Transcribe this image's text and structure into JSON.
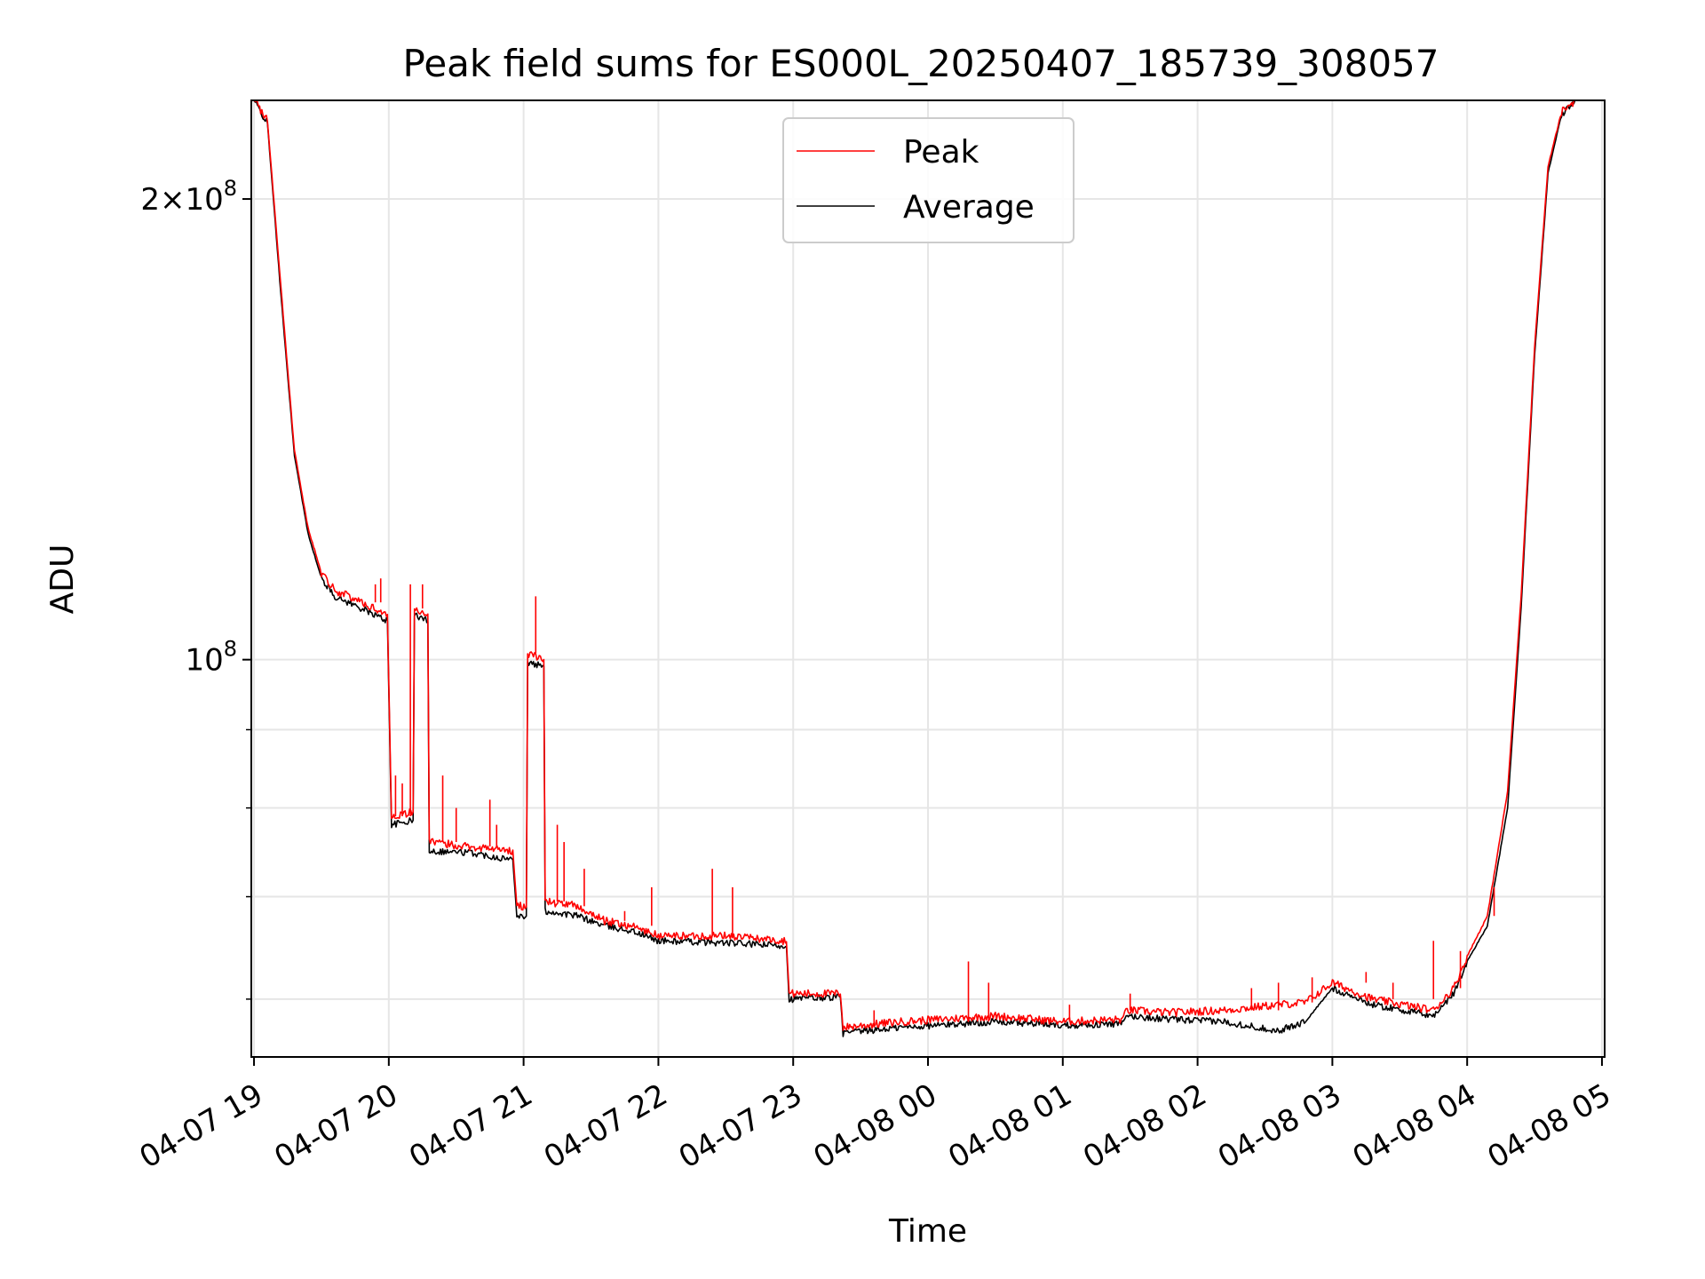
{
  "chart_data": {
    "type": "line",
    "title": "Peak field sums for ES000L_20250407_185739_308057",
    "xlabel": "Time",
    "ylabel": "ADU",
    "x_ticks": [
      "04-07 19",
      "04-07 20",
      "04-07 21",
      "04-07 22",
      "04-07 23",
      "04-08 00",
      "04-08 01",
      "04-08 02",
      "04-08 03",
      "04-08 04",
      "04-08 05"
    ],
    "y_ticks_major": [
      {
        "value": 100000000,
        "base": "10",
        "exp": "8",
        "coef": ""
      },
      {
        "value": 200000000,
        "base": "10",
        "exp": "8",
        "coef": "2×"
      }
    ],
    "y_ticks_minor": [
      60000000,
      70000000,
      80000000,
      90000000
    ],
    "ylim": [
      55000000,
      232000000
    ],
    "y_scale": "log",
    "xlim_hours": [
      18.98,
      29.02
    ],
    "grid": true,
    "legend_position": "top-center",
    "colors": {
      "peak": "#ff0000",
      "average": "#000000"
    },
    "series": [
      {
        "name": "Peak",
        "color": "#ff0000",
        "points": [
          [
            19.0,
            232000000
          ],
          [
            19.1,
            225000000
          ],
          [
            19.2,
            175000000
          ],
          [
            19.3,
            137000000
          ],
          [
            19.4,
            122000000
          ],
          [
            19.5,
            114000000
          ],
          [
            19.6,
            111000000
          ],
          [
            19.8,
            109000000
          ],
          [
            19.99,
            107000000
          ],
          [
            20.02,
            79000000
          ],
          [
            20.18,
            79500000
          ],
          [
            20.19,
            108000000
          ],
          [
            20.29,
            107000000
          ],
          [
            20.3,
            76000000
          ],
          [
            20.6,
            75500000
          ],
          [
            20.92,
            75000000
          ],
          [
            20.95,
            69000000
          ],
          [
            21.02,
            69000000
          ],
          [
            21.03,
            101000000
          ],
          [
            21.15,
            100000000
          ],
          [
            21.16,
            69500000
          ],
          [
            21.4,
            69000000
          ],
          [
            21.6,
            67500000
          ],
          [
            21.8,
            67000000
          ],
          [
            22.0,
            66000000
          ],
          [
            22.5,
            66000000
          ],
          [
            22.95,
            65500000
          ],
          [
            22.97,
            60500000
          ],
          [
            23.35,
            60500000
          ],
          [
            23.37,
            57500000
          ],
          [
            23.8,
            58000000
          ],
          [
            24.5,
            58500000
          ],
          [
            25.0,
            58000000
          ],
          [
            25.45,
            58200000
          ],
          [
            25.47,
            59000000
          ],
          [
            25.8,
            58800000
          ],
          [
            26.2,
            59000000
          ],
          [
            26.6,
            59500000
          ],
          [
            26.8,
            59700000
          ],
          [
            27.0,
            61500000
          ],
          [
            27.3,
            60000000
          ],
          [
            27.75,
            59000000
          ],
          [
            27.9,
            61000000
          ],
          [
            28.0,
            64000000
          ],
          [
            28.15,
            68000000
          ],
          [
            28.3,
            82000000
          ],
          [
            28.4,
            110000000
          ],
          [
            28.5,
            160000000
          ],
          [
            28.6,
            210000000
          ],
          [
            28.7,
            228000000
          ],
          [
            28.8,
            232000000
          ]
        ],
        "spikes": [
          [
            19.9,
            112000000
          ],
          [
            19.94,
            113000000
          ],
          [
            20.05,
            84000000
          ],
          [
            20.1,
            83000000
          ],
          [
            20.16,
            112000000
          ],
          [
            20.25,
            112000000
          ],
          [
            20.4,
            84000000
          ],
          [
            20.5,
            80000000
          ],
          [
            20.75,
            81000000
          ],
          [
            20.8,
            78000000
          ],
          [
            21.09,
            110000000
          ],
          [
            21.25,
            78000000
          ],
          [
            21.3,
            76000000
          ],
          [
            21.45,
            73000000
          ],
          [
            21.75,
            68500000
          ],
          [
            21.95,
            71000000
          ],
          [
            22.4,
            73000000
          ],
          [
            22.55,
            71000000
          ],
          [
            23.6,
            59000000
          ],
          [
            24.3,
            63500000
          ],
          [
            24.45,
            61500000
          ],
          [
            25.05,
            59500000
          ],
          [
            25.5,
            60500000
          ],
          [
            26.4,
            61000000
          ],
          [
            26.6,
            61500000
          ],
          [
            26.85,
            62000000
          ],
          [
            27.25,
            62500000
          ],
          [
            27.45,
            61500000
          ],
          [
            27.75,
            65500000
          ],
          [
            27.95,
            64500000
          ],
          [
            28.2,
            71000000
          ]
        ]
      },
      {
        "name": "Average",
        "color": "#000000",
        "points": [
          [
            19.0,
            232000000
          ],
          [
            19.1,
            224000000
          ],
          [
            19.2,
            173000000
          ],
          [
            19.3,
            136000000
          ],
          [
            19.4,
            121000000
          ],
          [
            19.5,
            113000000
          ],
          [
            19.6,
            110000000
          ],
          [
            19.8,
            108000000
          ],
          [
            19.99,
            106000000
          ],
          [
            20.02,
            78000000
          ],
          [
            20.18,
            78500000
          ],
          [
            20.19,
            107000000
          ],
          [
            20.29,
            106000000
          ],
          [
            20.3,
            75000000
          ],
          [
            20.6,
            74800000
          ],
          [
            20.92,
            74000000
          ],
          [
            20.95,
            68000000
          ],
          [
            21.02,
            68000000
          ],
          [
            21.03,
            99500000
          ],
          [
            21.15,
            99000000
          ],
          [
            21.16,
            68500000
          ],
          [
            21.4,
            68000000
          ],
          [
            21.6,
            67000000
          ],
          [
            21.8,
            66500000
          ],
          [
            22.0,
            65500000
          ],
          [
            22.5,
            65300000
          ],
          [
            22.95,
            65000000
          ],
          [
            22.97,
            60000000
          ],
          [
            23.35,
            60200000
          ],
          [
            23.37,
            57000000
          ],
          [
            23.8,
            57500000
          ],
          [
            24.5,
            58000000
          ],
          [
            25.0,
            57700000
          ],
          [
            25.45,
            57800000
          ],
          [
            25.47,
            58500000
          ],
          [
            25.8,
            58200000
          ],
          [
            26.2,
            58000000
          ],
          [
            26.6,
            57200000
          ],
          [
            26.8,
            58000000
          ],
          [
            27.0,
            61000000
          ],
          [
            27.3,
            59500000
          ],
          [
            27.75,
            58500000
          ],
          [
            27.9,
            60500000
          ],
          [
            28.0,
            63500000
          ],
          [
            28.15,
            67000000
          ],
          [
            28.3,
            80000000
          ],
          [
            28.4,
            108000000
          ],
          [
            28.5,
            158000000
          ],
          [
            28.6,
            208000000
          ],
          [
            28.7,
            227000000
          ],
          [
            28.8,
            232000000
          ]
        ]
      }
    ]
  }
}
